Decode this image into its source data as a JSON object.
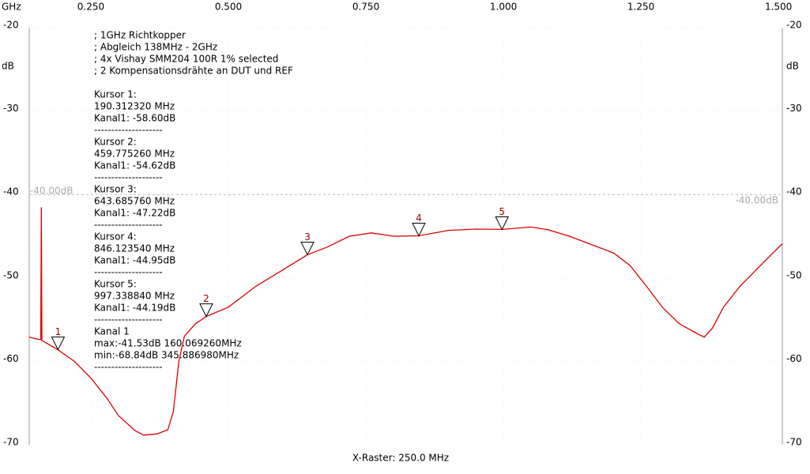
{
  "chart_data": {
    "type": "line",
    "xlabel": "GHz",
    "ylabel": "dB",
    "footer": "X-Raster: 250.0 MHz",
    "color": "#dd0000",
    "grid": true,
    "xlim": [
      0.138,
      1.507
    ],
    "ylim": [
      -70,
      -20
    ],
    "xticks": [
      {
        "value": 0.25,
        "label": "0.250"
      },
      {
        "value": 0.5,
        "label": "0.500"
      },
      {
        "value": 0.75,
        "label": "0.750"
      },
      {
        "value": 1.0,
        "label": "1.000"
      },
      {
        "value": 1.25,
        "label": "1.250"
      },
      {
        "value": 1.5,
        "label": "1.500"
      }
    ],
    "yticks": [
      -20,
      -30,
      -40,
      -50,
      -60,
      -70
    ],
    "reference": {
      "value": -40,
      "label": "-40.00dB"
    },
    "x": [
      0.138,
      0.15,
      0.159,
      0.16,
      0.161,
      0.19,
      0.22,
      0.25,
      0.28,
      0.3,
      0.33,
      0.345887,
      0.37,
      0.39,
      0.4,
      0.41,
      0.42,
      0.44,
      0.46,
      0.5,
      0.55,
      0.6,
      0.644,
      0.68,
      0.72,
      0.76,
      0.8,
      0.846,
      0.9,
      0.95,
      0.997,
      1.05,
      1.08,
      1.12,
      1.16,
      1.2,
      1.23,
      1.26,
      1.29,
      1.32,
      1.35,
      1.365,
      1.38,
      1.4,
      1.43,
      1.46,
      1.49,
      1.507
    ],
    "values": [
      -57.1,
      -57.3,
      -57.4,
      -41.53,
      -57.5,
      -58.6,
      -60,
      -62,
      -64.5,
      -66.5,
      -68.3,
      -68.84,
      -68.7,
      -68.2,
      -66,
      -60,
      -57,
      -55.5,
      -54.62,
      -53.5,
      -51,
      -49,
      -47.22,
      -46.3,
      -45,
      -44.6,
      -45,
      -44.95,
      -44.3,
      -44.15,
      -44.19,
      -43.9,
      -44.2,
      -45,
      -46,
      -47,
      -48.5,
      -51,
      -53.6,
      -55.5,
      -56.6,
      -57.1,
      -56,
      -53.5,
      -51,
      -49,
      -47,
      -45.9
    ],
    "markers": [
      {
        "label": "1",
        "x": 0.19031232,
        "y": -58.6
      },
      {
        "label": "2",
        "x": 0.45977526,
        "y": -54.62
      },
      {
        "label": "3",
        "x": 0.64368576,
        "y": -47.22
      },
      {
        "label": "4",
        "x": 0.84612354,
        "y": -44.95
      },
      {
        "label": "5",
        "x": 0.99733884,
        "y": -44.19
      }
    ],
    "annotations": [
      [
        "; 1GHz Richtkopper",
        "; Abgleich 138MHz - 2GHz",
        "; 4x Vishay SMM204 100R 1% selected",
        "; 2 Kompensationsdrähte an DUT und REF"
      ],
      [
        "Kursor 1:",
        "190.312320 MHz",
        "Kanal1: -58.60dB",
        "--------------------",
        "Kursor 2:",
        "459.775260 MHz",
        "Kanal1: -54.62dB",
        "--------------------",
        "Kursor 3:",
        "643.685760 MHz",
        "Kanal1: -47.22dB",
        "--------------------",
        "Kursor 4:",
        "846.123540 MHz",
        "Kanal1: -44.95dB",
        "--------------------",
        "Kursor 5:",
        "997.338840 MHz",
        "Kanal1: -44.19dB",
        "--------------------",
        "Kanal 1",
        "max:-41.53dB 160.069260MHz",
        "min:-68.84dB 345.886980MHz",
        "--------------------"
      ]
    ]
  }
}
